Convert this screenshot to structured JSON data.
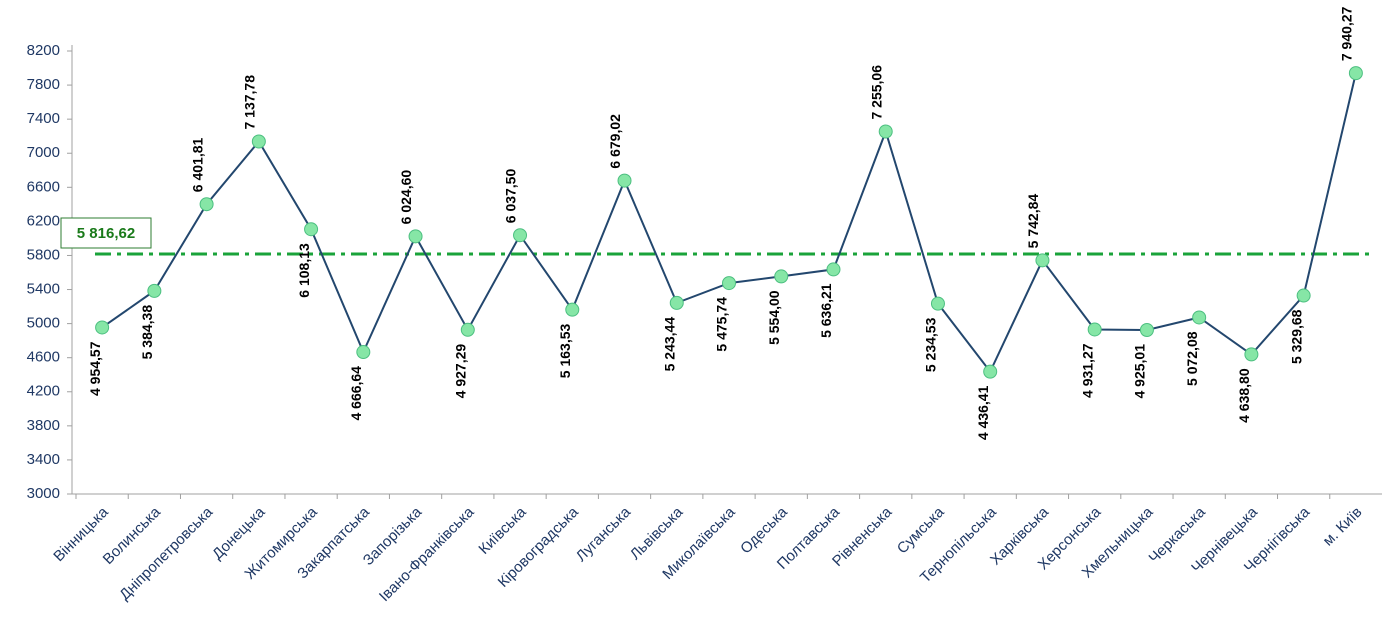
{
  "chart_data": {
    "type": "line",
    "categories": [
      "Вінницька",
      "Волинська",
      "Дніпропетровська",
      "Донецька",
      "Житомирська",
      "Закарпатська",
      "Запорізька",
      "Івано-Франківська",
      "Київська",
      "Кіровоградська",
      "Луганська",
      "Львівська",
      "Миколаївська",
      "Одеська",
      "Полтавська",
      "Рівненська",
      "Сумська",
      "Тернопільська",
      "Харківська",
      "Херсонська",
      "Хмельницька",
      "Черкаська",
      "Чернівецька",
      "Чернігівська",
      "м. Київ"
    ],
    "series": [
      {
        "color": "#23476e",
        "marker_color": "#86e6a6",
        "values": [
          4954.57,
          5384.38,
          6401.81,
          7137.78,
          6108.13,
          4666.64,
          6024.6,
          4927.29,
          6037.5,
          5163.53,
          6679.02,
          5243.44,
          5475.74,
          5554.0,
          5636.21,
          7255.06,
          5234.53,
          4436.41,
          5742.84,
          4931.27,
          4925.01,
          5072.08,
          4638.8,
          5329.68,
          7940.27
        ],
        "value_labels": [
          "4 954,57",
          "5 384,38",
          "6 401,81",
          "7 137,78",
          "6 108,13",
          "4 666,64",
          "6 024,60",
          "4 927,29",
          "6 037,50",
          "5 163,53",
          "6 679,02",
          "5 243,44",
          "5 475,74",
          "5 554,00",
          "5 636,21",
          "7 255,06",
          "5 234,53",
          "4 436,41",
          "5 742,84",
          "4 931,27",
          "4 925,01",
          "5 072,08",
          "4 638,80",
          "5 329,68",
          "7 940,27"
        ]
      }
    ],
    "reference_line": {
      "value": 5816.62,
      "label": "5 816,62",
      "color": "#1aa33a"
    },
    "ylim": [
      3000,
      8200
    ],
    "yticks": [
      3000,
      3400,
      3800,
      4200,
      4600,
      5000,
      5400,
      5800,
      6200,
      6600,
      7000,
      7400,
      7800,
      8200
    ],
    "grid": false
  }
}
